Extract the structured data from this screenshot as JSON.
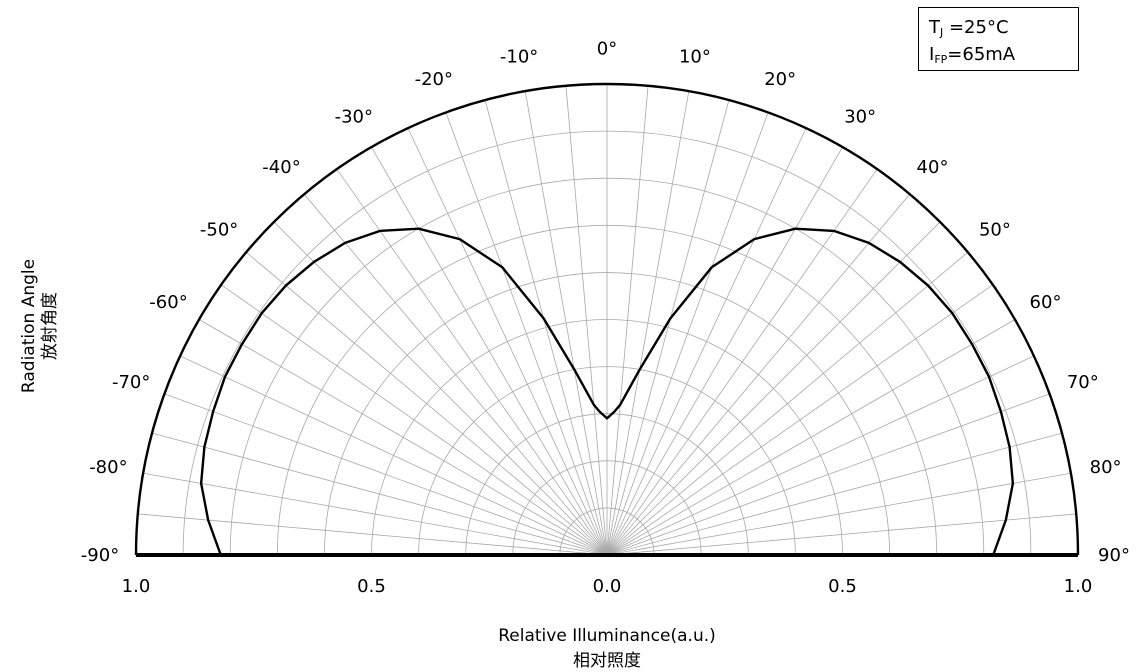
{
  "chart_data": {
    "type": "polar-line",
    "title": "",
    "xlabel": "Relative Illuminance(a.u.)",
    "xlabel_cn": "相对照度",
    "ylabel": "Radiation Angle",
    "ylabel_cn": "放射角度",
    "angle_labels": [
      "-90°",
      "-80°",
      "-70°",
      "-60°",
      "-50°",
      "-40°",
      "-30°",
      "-20°",
      "-10°",
      "0°",
      "10°",
      "20°",
      "30°",
      "40°",
      "50°",
      "60°",
      "70°",
      "80°",
      "90°"
    ],
    "angles": [
      -90,
      -80,
      -70,
      -60,
      -50,
      -40,
      -30,
      -20,
      -10,
      0,
      10,
      20,
      30,
      40,
      50,
      60,
      70,
      80,
      90
    ],
    "radial_tick_labels": [
      "1.0",
      "0.5",
      "0.0",
      "0.5",
      "1.0"
    ],
    "radial_range": [
      0,
      1.0
    ],
    "grid": true,
    "series": [
      {
        "theta": [
          -90,
          -85,
          -80,
          -75,
          -70,
          -65,
          -60,
          -55,
          -50,
          -45,
          -40,
          -35,
          -30,
          -25,
          -20,
          -15,
          -10,
          -5,
          -3,
          0,
          3,
          5,
          10,
          15,
          20,
          25,
          30,
          35,
          40,
          45,
          50,
          55,
          60,
          65,
          70,
          75,
          80,
          85,
          90
        ],
        "r": [
          0.82,
          0.85,
          0.875,
          0.885,
          0.89,
          0.895,
          0.895,
          0.895,
          0.89,
          0.88,
          0.865,
          0.84,
          0.8,
          0.74,
          0.65,
          0.52,
          0.4,
          0.32,
          0.305,
          0.29,
          0.305,
          0.32,
          0.4,
          0.52,
          0.65,
          0.74,
          0.8,
          0.84,
          0.865,
          0.88,
          0.89,
          0.895,
          0.895,
          0.895,
          0.89,
          0.885,
          0.875,
          0.85,
          0.82
        ]
      }
    ],
    "legend": {
      "position": "top-right",
      "line1_main": "T",
      "line1_sub": "J",
      "line1_value": " =25°C",
      "line2_main": "I",
      "line2_sub": "FP",
      "line2_value": "=65mA"
    }
  }
}
